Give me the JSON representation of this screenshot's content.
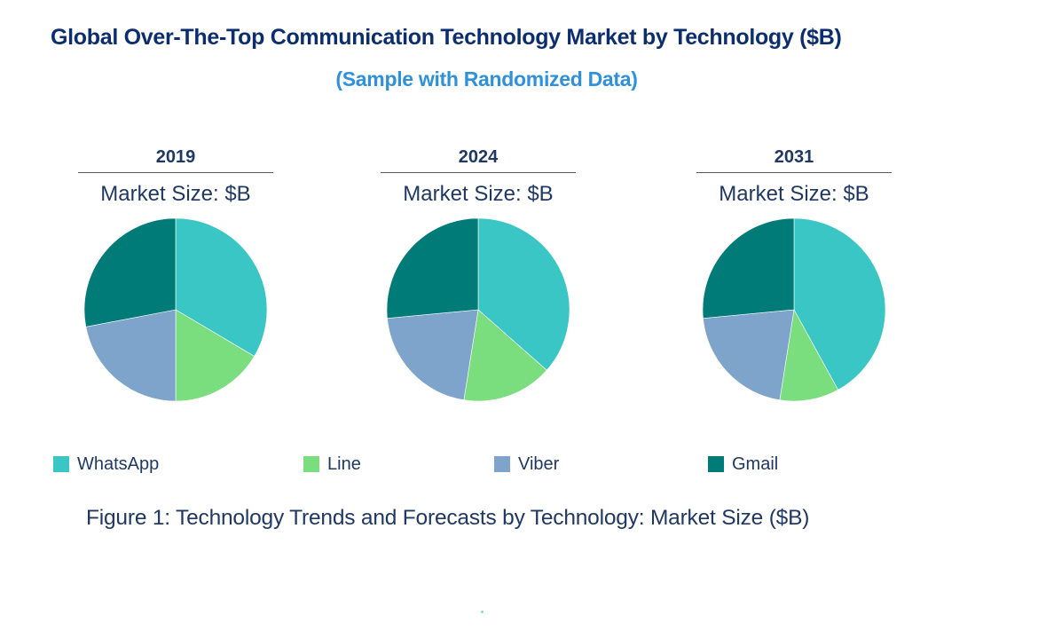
{
  "header": {
    "title": "Global Over-The-Top Communication Technology Market by Technology ($B)",
    "subtitle": "(Sample with Randomized Data)"
  },
  "colors": {
    "title": "#0C2E6F",
    "subtitle": "#2E91D9",
    "body_text": "#1F3864",
    "divider": "#595959"
  },
  "chart_data": {
    "type": "pie",
    "title": "Global Over-The-Top Communication Technology Market by Technology ($B)",
    "subtitle": "(Sample with Randomized Data)",
    "caption": "Figure 1: Technology Trends and Forecasts by Technology: Market Size ($B)",
    "unit_label": "Market Size: $B",
    "legend": [
      "WhatsApp",
      "Line",
      "Viber",
      "Gmail"
    ],
    "legend_position": "bottom",
    "slice_colors": [
      "#3AC6C4",
      "#7BDE7E",
      "#7EA4CC",
      "#007B78"
    ],
    "values_are": "percent share, estimated from slice angles (no numeric labels shown)",
    "start_angle": "12 o'clock, clockwise",
    "pies": [
      {
        "year": "2019",
        "values": [
          33.5,
          16.5,
          22.0,
          28.0
        ]
      },
      {
        "year": "2024",
        "values": [
          36.5,
          16.0,
          21.0,
          26.5
        ]
      },
      {
        "year": "2031",
        "values": [
          42.0,
          10.5,
          21.0,
          26.5
        ]
      }
    ]
  }
}
